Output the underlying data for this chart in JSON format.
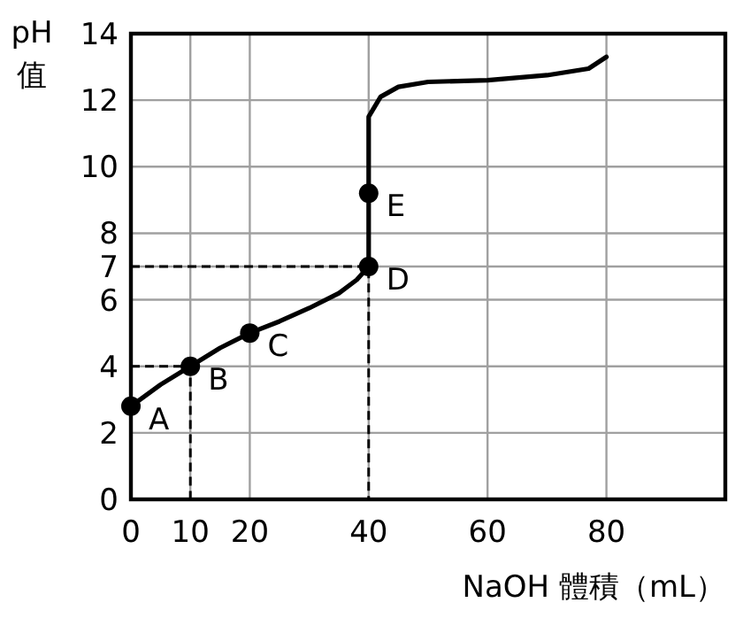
{
  "chart_data": {
    "type": "line",
    "xlabel": "NaOH 體積（mL）",
    "ylabel": "pH 值",
    "xlim": [
      0,
      100
    ],
    "ylim": [
      0,
      14
    ],
    "xticks": [
      0,
      10,
      20,
      40,
      60,
      80
    ],
    "yticks": [
      0,
      2,
      4,
      6,
      7,
      8,
      10,
      12,
      14
    ],
    "grid": true,
    "series": [
      {
        "color": "#000000",
        "line_style": "solid",
        "marker": "none",
        "x": [
          0,
          5,
          10,
          15,
          20,
          25,
          30,
          35,
          38,
          40,
          40,
          40,
          42,
          45,
          50,
          60,
          70,
          77,
          80
        ],
        "values": [
          2.8,
          3.45,
          4,
          4.55,
          5,
          5.35,
          5.75,
          6.2,
          6.6,
          7,
          9.2,
          11.5,
          12.1,
          12.4,
          12.55,
          12.6,
          12.75,
          12.95,
          13.3
        ]
      },
      {
        "color": "#000000",
        "line_style": "dashed",
        "marker": "none",
        "x": [
          0,
          40,
          40
        ],
        "values": [
          7,
          7,
          0
        ]
      },
      {
        "color": "#000000",
        "line_style": "dashed",
        "marker": "none",
        "x": [
          0,
          10,
          10
        ],
        "values": [
          4,
          4,
          0
        ]
      },
      {
        "type": "scatter",
        "color": "#000000",
        "marker": "circle",
        "x": [
          0,
          10,
          20,
          40,
          40
        ],
        "values": [
          2.8,
          4,
          5,
          7,
          9.2
        ]
      }
    ],
    "annotations": [
      {
        "text": "A",
        "x": 0,
        "y": 2.8
      },
      {
        "text": "B",
        "x": 10,
        "y": 4
      },
      {
        "text": "C",
        "x": 20,
        "y": 5
      },
      {
        "text": "D",
        "x": 40,
        "y": 7
      },
      {
        "text": "E",
        "x": 40,
        "y": 9.2
      }
    ]
  }
}
